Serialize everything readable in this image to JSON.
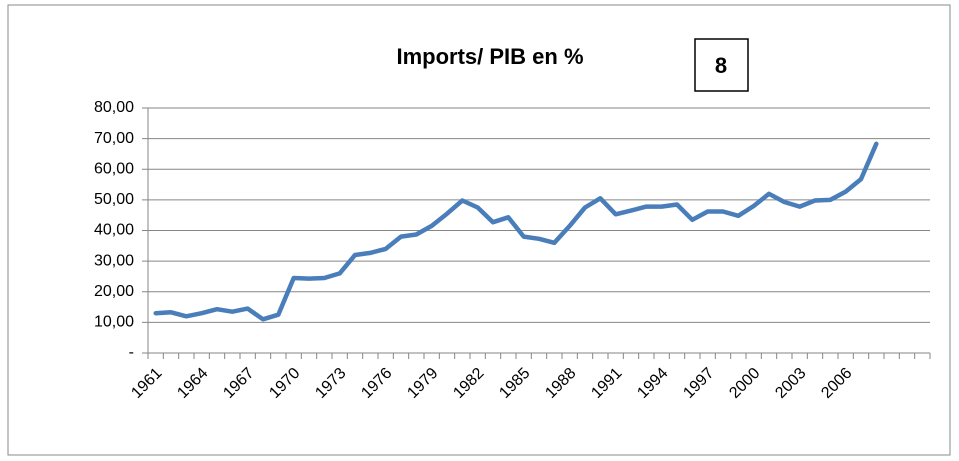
{
  "chart_data": {
    "type": "line",
    "title": "Imports/ PIB en %",
    "annotation": "8",
    "categories": [
      "1961",
      null,
      null,
      "1964",
      null,
      null,
      "1967",
      null,
      null,
      "1970",
      null,
      null,
      "1973",
      null,
      null,
      "1976",
      null,
      null,
      "1979",
      null,
      null,
      "1982",
      null,
      null,
      "1985",
      null,
      null,
      "1988",
      null,
      null,
      "1991",
      null,
      null,
      "1994",
      null,
      null,
      "1997",
      null,
      null,
      "2000",
      null,
      null,
      "2003",
      null,
      null,
      "2006",
      null,
      null,
      null,
      null,
      null
    ],
    "series": [
      {
        "name": "Imports/ PIB en %",
        "color": "#4a7ebb",
        "values": [
          13,
          13.3,
          12,
          13,
          14.3,
          13.5,
          14.5,
          11,
          12.5,
          24.5,
          24.3,
          24.5,
          26,
          32,
          32.7,
          34,
          38,
          38.7,
          41.5,
          45.5,
          49.8,
          47.5,
          42.7,
          44.3,
          38,
          37.3,
          36,
          41.5,
          47.5,
          50.5,
          45.3,
          46.5,
          47.8,
          47.8,
          48.5,
          43.5,
          46.2,
          46.2,
          44.8,
          48,
          52,
          49.3,
          47.8,
          49.8,
          50,
          52.7,
          56.8,
          68.3,
          null,
          null,
          null
        ]
      }
    ],
    "ylim": [
      0,
      80
    ],
    "yticks": [
      {
        "value": 0,
        "label": "-"
      },
      {
        "value": 10,
        "label": "10,00"
      },
      {
        "value": 20,
        "label": "20,00"
      },
      {
        "value": 30,
        "label": "30,00"
      },
      {
        "value": 40,
        "label": "40,00"
      },
      {
        "value": 50,
        "label": "50,00"
      },
      {
        "value": 60,
        "label": "60,00"
      },
      {
        "value": 70,
        "label": "70,00"
      },
      {
        "value": 80,
        "label": "80,00"
      }
    ],
    "grid": true
  }
}
